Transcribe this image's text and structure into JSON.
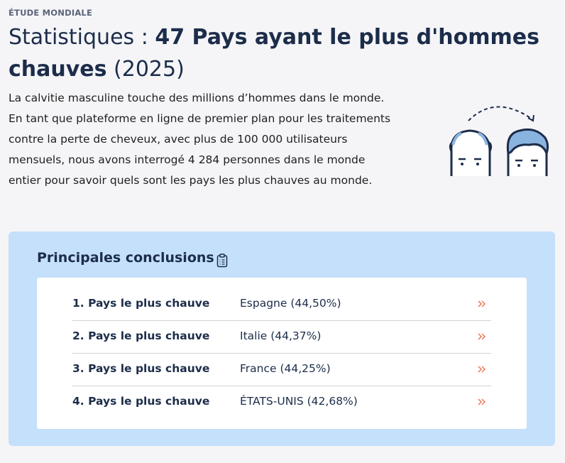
{
  "header": {
    "kicker": "ÉTUDE MONDIALE",
    "title": {
      "before": "Statistiques : ",
      "bold": "47 Pays ayant le plus d'hommes chauves",
      "after": " (2025)"
    },
    "intro": "La calvitie masculine touche des millions d’hommes dans le monde. En tant que plateforme en ligne de premier plan pour les traitements contre la perte de cheveux, avec plus de 100 000 utilisateurs mensuels, nous avons interrogé 4 284 personnes dans le monde entier pour savoir quels sont les pays les plus chauves au monde."
  },
  "findings": {
    "title": "Principales conclusions",
    "rows": [
      {
        "label": "1. Pays le plus chauve",
        "value": "Espagne (44,50%)"
      },
      {
        "label": "2. Pays le plus chauve",
        "value": "Italie (44,37%)"
      },
      {
        "label": "3. Pays le plus chauve",
        "value": "France (44,25%)"
      },
      {
        "label": "4. Pays le plus chauve",
        "value": "ÉTATS-UNIS (42,68%)"
      }
    ]
  }
}
